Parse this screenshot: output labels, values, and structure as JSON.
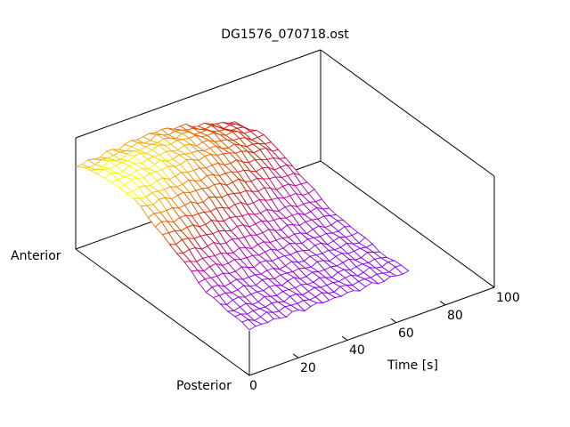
{
  "chart_data": {
    "type": "surface3d",
    "title": "DG1576_070718.ost",
    "xlabel": "Time [s]",
    "x_ticks": [
      "0",
      "20",
      "40",
      "60",
      "80",
      "100"
    ],
    "xlim": [
      0,
      100
    ],
    "y_labels": {
      "start": "Anterior",
      "end": "Posterior"
    },
    "ylim": [
      0,
      1
    ],
    "zlim": [
      0,
      1
    ],
    "grid_t": [
      0,
      10,
      20,
      30,
      40,
      50,
      60
    ],
    "grid_s": [
      0,
      0.125,
      0.25,
      0.375,
      0.5,
      0.625,
      0.75,
      0.875,
      1
    ],
    "z": [
      [
        0.74,
        0.82,
        0.85,
        0.8,
        0.7,
        0.58,
        0.48,
        0.43,
        0.42
      ],
      [
        0.76,
        0.84,
        0.86,
        0.8,
        0.68,
        0.56,
        0.47,
        0.43,
        0.42
      ],
      [
        0.78,
        0.86,
        0.86,
        0.78,
        0.65,
        0.53,
        0.46,
        0.43,
        0.42
      ],
      [
        0.8,
        0.86,
        0.85,
        0.76,
        0.62,
        0.51,
        0.45,
        0.43,
        0.42
      ],
      [
        0.78,
        0.84,
        0.82,
        0.72,
        0.58,
        0.49,
        0.44,
        0.42,
        0.42
      ],
      [
        0.72,
        0.78,
        0.76,
        0.66,
        0.54,
        0.47,
        0.44,
        0.42,
        0.42
      ],
      [
        0.66,
        0.72,
        0.7,
        0.61,
        0.51,
        0.46,
        0.43,
        0.42,
        0.42
      ]
    ],
    "palette": [
      "#8a00ff",
      "#c000a0",
      "#d02000",
      "#f07000",
      "#ffff00"
    ]
  }
}
